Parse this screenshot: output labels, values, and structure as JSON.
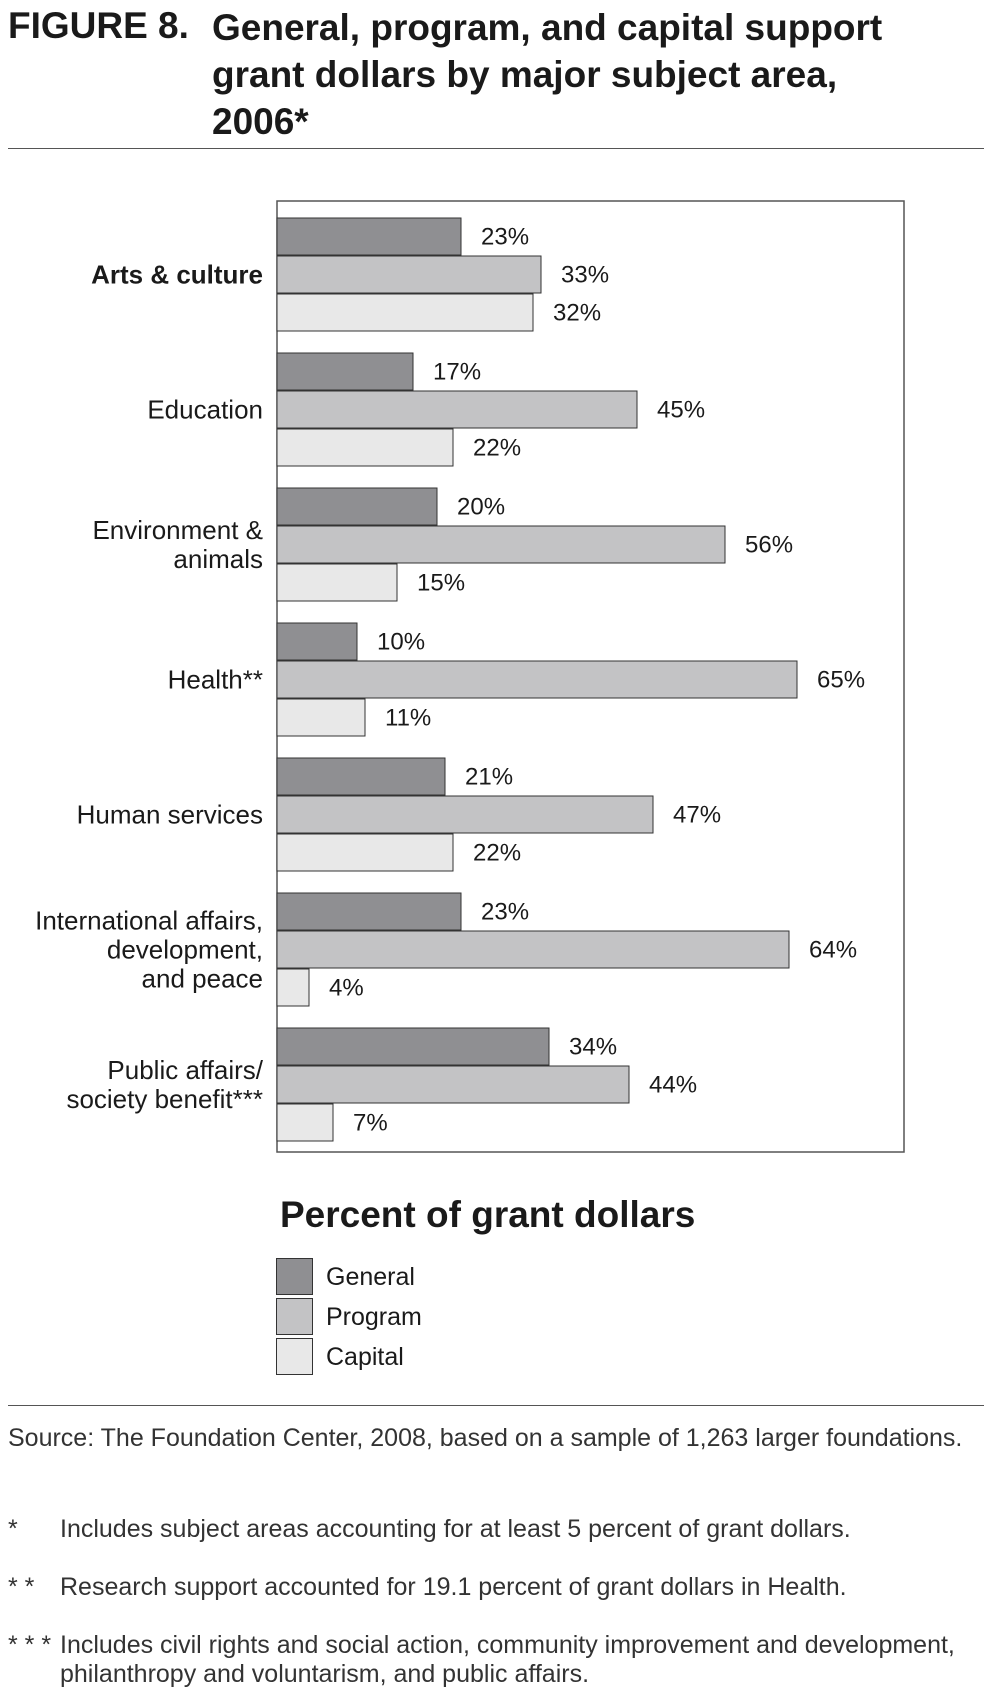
{
  "figure": {
    "label": "FIGURE 8.",
    "title": "General, program, and capital support grant dollars by major subject area, 2006*"
  },
  "chart_data": {
    "type": "bar",
    "orientation": "horizontal",
    "categories": [
      "Arts & culture",
      "Education",
      "Environment & animals",
      "Health**",
      "Human services",
      "International affairs, development, and peace",
      "Public affairs/ society benefit***"
    ],
    "category_lines": [
      [
        "Arts & culture"
      ],
      [
        "Education"
      ],
      [
        "Environment &",
        "animals"
      ],
      [
        "Health**"
      ],
      [
        "Human services"
      ],
      [
        "International affairs,",
        "development,",
        "and peace"
      ],
      [
        "Public affairs/",
        "society benefit***"
      ]
    ],
    "bold_categories": [
      "Arts & culture"
    ],
    "series": [
      {
        "name": "General",
        "color": "#8f8f92",
        "values": [
          23,
          17,
          20,
          10,
          21,
          23,
          34
        ]
      },
      {
        "name": "Program",
        "color": "#c3c3c5",
        "values": [
          33,
          45,
          56,
          65,
          47,
          64,
          44
        ]
      },
      {
        "name": "Capital",
        "color": "#e8e8e8",
        "values": [
          32,
          22,
          15,
          11,
          22,
          4,
          7
        ]
      }
    ],
    "value_suffix": "%",
    "xlabel": "Percent of grant dollars",
    "xlim": [
      0,
      80
    ],
    "grid": false,
    "legend_position": "bottom"
  },
  "source": "Source: The Foundation Center, 2008, based on a sample of 1,263 larger foundations.",
  "notes": [
    {
      "mark": "*",
      "text": "Includes subject areas accounting for at least 5 percent of grant dollars."
    },
    {
      "mark": "* *",
      "text": "Research support accounted for 19.1 percent of grant dollars in Health."
    },
    {
      "mark": "* * *",
      "text": "Includes civil rights and social action, community improvement and development, philanthropy and voluntarism, and public affairs."
    }
  ]
}
